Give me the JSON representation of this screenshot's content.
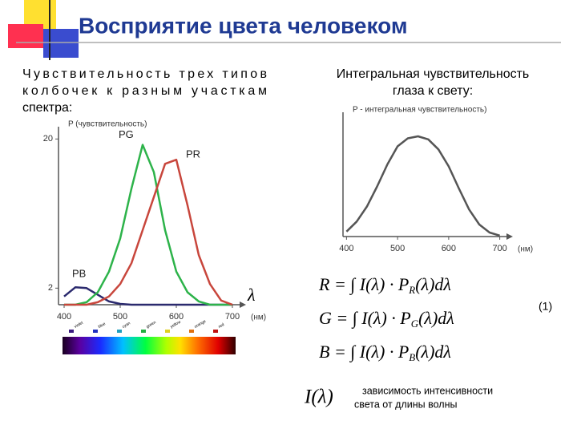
{
  "header": {
    "title": "Восприятие цвета человеком"
  },
  "left_text": [
    "Чувствительность трех типов",
    "колбочек к разным участкам",
    "спектра:"
  ],
  "right_text": [
    "Интегральная чувствительность",
    "глаза к свету:"
  ],
  "chart_data": [
    {
      "type": "line",
      "y_label": "P (чувствительность)",
      "x_label": "(нм)",
      "x_symbol": "λ",
      "x": [
        400,
        420,
        440,
        460,
        480,
        500,
        520,
        540,
        560,
        580,
        600,
        620,
        640,
        660,
        680,
        700
      ],
      "series": [
        {
          "name": "PB",
          "color": "#2b2a6e",
          "values": [
            1.0,
            2.1,
            2.0,
            1.2,
            0.4,
            0.1,
            0,
            0,
            0,
            0,
            0,
            0,
            0,
            0,
            0,
            0
          ]
        },
        {
          "name": "PG",
          "color": "#2db34a",
          "values": [
            0,
            0,
            0.3,
            1.5,
            4,
            8,
            14,
            19.3,
            16,
            9,
            4,
            1.5,
            0.4,
            0,
            0,
            0
          ]
        },
        {
          "name": "PR",
          "color": "#c8463c",
          "values": [
            0,
            0,
            0,
            0.3,
            1,
            2.5,
            5,
            9,
            13,
            17,
            17.5,
            12,
            6,
            2.5,
            0.5,
            0
          ]
        }
      ],
      "xlim": [
        390,
        710
      ],
      "xticks": [
        400,
        500,
        600,
        700
      ],
      "ylim": [
        0,
        21
      ],
      "yticks": [
        2,
        20
      ],
      "spectrum_labels": [
        "violet",
        "blue",
        "cyan",
        "green",
        "yellow",
        "orange",
        "red"
      ]
    },
    {
      "type": "line",
      "y_label": "P - интегральная чувствительность)",
      "x_label": "(нм)",
      "x": [
        400,
        420,
        440,
        460,
        480,
        500,
        520,
        540,
        560,
        580,
        600,
        620,
        640,
        660,
        680,
        700
      ],
      "series": [
        {
          "color": "#555555",
          "values": [
            0.05,
            0.15,
            0.3,
            0.5,
            0.72,
            0.9,
            0.98,
            1.0,
            0.97,
            0.87,
            0.7,
            0.48,
            0.27,
            0.12,
            0.04,
            0.01
          ]
        }
      ],
      "xlim": [
        390,
        710
      ],
      "xticks": [
        400,
        500,
        600,
        700
      ],
      "ylim": [
        0,
        1.2
      ]
    }
  ],
  "formulas": [
    [
      "R = ∫ I(λ) · P",
      "R",
      "(λ)dλ"
    ],
    [
      "G = ∫ I(λ) · P",
      "G",
      "(λ)dλ"
    ],
    [
      "B = ∫ I(λ) · P",
      "B",
      "(λ)dλ"
    ]
  ],
  "equation_number": "(1)",
  "note": {
    "symbol": "I(λ)",
    "lines": [
      "зависимость интенсивности",
      "света от длины волны"
    ]
  }
}
